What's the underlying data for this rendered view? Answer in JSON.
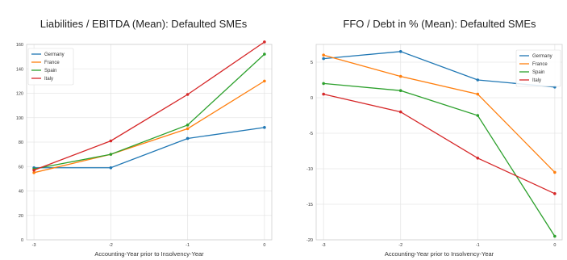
{
  "chart_data": [
    {
      "type": "line",
      "title": "Liabilities / EBITDA (Mean): Defaulted SMEs",
      "xlabel": "Accounting-Year prior to Insolvency-Year",
      "ylabel": "",
      "x": [
        -3,
        -2,
        -1,
        0
      ],
      "ylim": [
        0,
        160
      ],
      "yticks": [
        0,
        20,
        40,
        60,
        80,
        100,
        120,
        140,
        160
      ],
      "grid": true,
      "legend": "top-left",
      "series": [
        {
          "name": "Germany",
          "color": "#1f77b4",
          "values": [
            59,
            59,
            83,
            92
          ]
        },
        {
          "name": "France",
          "color": "#ff7f0e",
          "values": [
            55,
            70,
            91,
            130
          ]
        },
        {
          "name": "Spain",
          "color": "#2ca02c",
          "values": [
            58,
            70,
            94,
            152
          ]
        },
        {
          "name": "Italy",
          "color": "#d62728",
          "values": [
            57,
            81,
            119,
            162
          ]
        }
      ]
    },
    {
      "type": "line",
      "title": "FFO / Debt in % (Mean): Defaulted SMEs",
      "xlabel": "Accounting-Year prior to Insolvency-Year",
      "ylabel": "",
      "x": [
        -3,
        -2,
        -1,
        0
      ],
      "ylim": [
        -20,
        7.5
      ],
      "yticks": [
        -20,
        -15,
        -10,
        -5,
        0,
        5
      ],
      "grid": true,
      "legend": "top-right",
      "series": [
        {
          "name": "Germany",
          "color": "#1f77b4",
          "values": [
            5.5,
            6.5,
            2.5,
            1.5
          ]
        },
        {
          "name": "France",
          "color": "#ff7f0e",
          "values": [
            6.0,
            3.0,
            0.5,
            -10.5
          ]
        },
        {
          "name": "Spain",
          "color": "#2ca02c",
          "values": [
            2.0,
            1.0,
            -2.5,
            -19.5
          ]
        },
        {
          "name": "Italy",
          "color": "#d62728",
          "values": [
            0.5,
            -2.0,
            -8.5,
            -13.5
          ]
        }
      ]
    }
  ]
}
